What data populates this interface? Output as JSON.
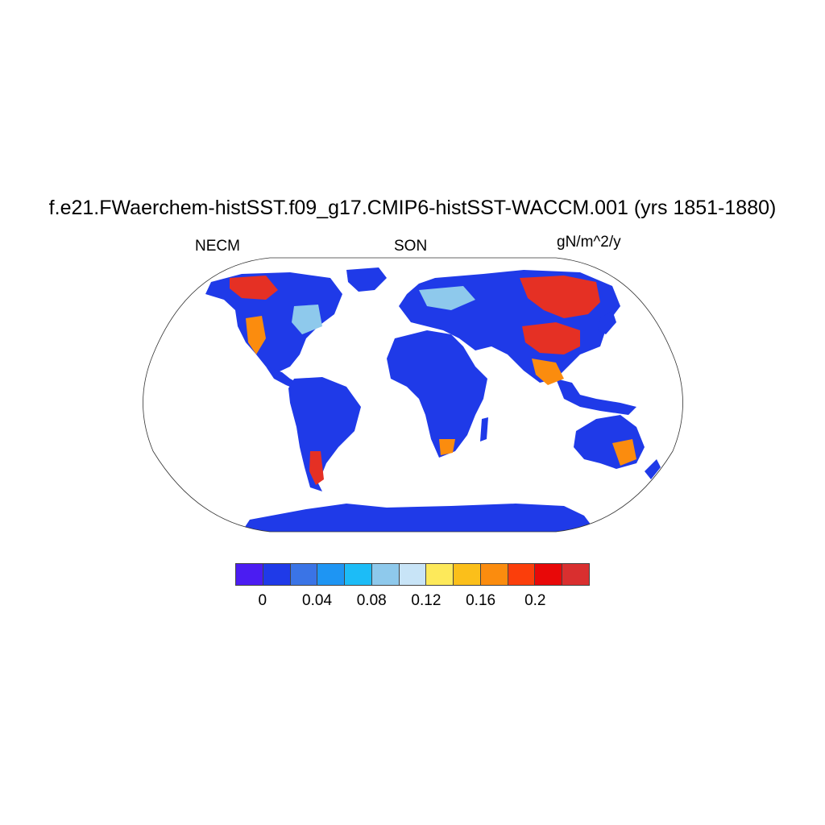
{
  "title": "f.e21.FWaerchem-histSST.f09_g17.CMIP6-histSST-WACCM.001 (yrs 1851-1880)",
  "left_label": "NECM",
  "center_label": "SON",
  "right_label": "gN/m^2/y",
  "colorbar": {
    "colors": [
      "#4b1cf2",
      "#1f3ae8",
      "#3a74e6",
      "#1e95f3",
      "#1cbcf7",
      "#8ec9ec",
      "#c8e4f7",
      "#fde95a",
      "#fbbf1a",
      "#fb8c0e",
      "#fb3e0b",
      "#e80808",
      "#d92f2f"
    ],
    "tick_labels": [
      "0",
      "0.04",
      "0.08",
      "0.12",
      "0.16",
      "0.2"
    ]
  },
  "map": {
    "land_color": "#1f3ae8",
    "hotspot_colors": {
      "red": "#e53024",
      "orange": "#fb8c0e",
      "yellow": "#fde95a",
      "light": "#8ec9ec"
    }
  }
}
